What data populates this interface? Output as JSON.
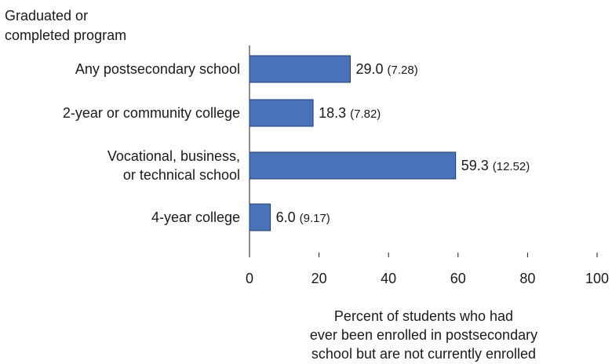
{
  "chart_data": {
    "type": "bar",
    "orientation": "horizontal",
    "title": "",
    "corner_label": [
      "Graduated or",
      "completed program"
    ],
    "categories": [
      [
        "Any postsecondary school"
      ],
      [
        "2-year or community college"
      ],
      [
        "Vocational, business,",
        "or technical school"
      ],
      [
        "4-year college"
      ]
    ],
    "values": [
      29.0,
      18.3,
      59.3,
      6.0
    ],
    "value_labels": [
      "29.0",
      "18.3",
      "59.3",
      "6.0"
    ],
    "standard_errors": [
      "(7.28)",
      "(7.82)",
      "(12.52)",
      "(9.17)"
    ],
    "xlim": [
      0,
      100
    ],
    "xticks": [
      0,
      20,
      40,
      60,
      80,
      100
    ],
    "xlabel": [
      "Percent of students who had",
      "ever been enrolled in postsecondary",
      "school but are not currently enrolled"
    ],
    "ylabel": "",
    "bar_color": "#4a72b8",
    "bar_border_color": "#1f3a6e",
    "grid": false,
    "legend": "none"
  }
}
